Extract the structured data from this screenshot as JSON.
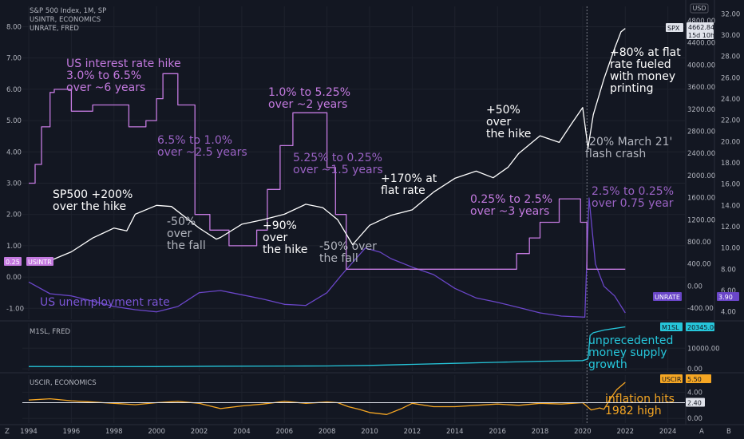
{
  "header": {
    "main_lines": [
      "S&P 500 Index, 1M, SP",
      "USINTR, ECONOMICS",
      "UNRATE, FRED"
    ],
    "pane2_title": "M1SL, FRED",
    "pane3_title": "USCIR, ECONOMICS",
    "currency": "USD"
  },
  "bottom_bar": {
    "left": "Z",
    "right": [
      "A",
      "B"
    ]
  },
  "chart_data": [
    {
      "type": "line",
      "pane": "main",
      "title": "S&P 500 Index, 1M, SP",
      "x_ticks": [
        1994,
        1996,
        1998,
        2000,
        2002,
        2004,
        2006,
        2008,
        2010,
        2012,
        2014,
        2016,
        2018,
        2020,
        2022,
        2024
      ],
      "xlim": [
        1993.7,
        2024.8
      ],
      "left_axis": {
        "ticks": [
          "-1.00",
          "0.00",
          "1.00",
          "2.00",
          "3.00",
          "4.00",
          "5.00",
          "6.00",
          "7.00",
          "8.00"
        ],
        "ylim": [
          -1.35,
          8.65
        ]
      },
      "mid_axis": {
        "ticks": [
          "-400.00",
          "0.00",
          "400.00",
          "800.00",
          "1200.00",
          "1600.00",
          "2000.00",
          "2400.00",
          "2800.00",
          "3200.00",
          "3600.00",
          "4000.00",
          "4400.00",
          "4800.00"
        ],
        "ylim": [
          -600,
          5060
        ]
      },
      "right_axis": {
        "ticks": [
          "4.00",
          "6.00",
          "8.00",
          "10.00",
          "12.00",
          "14.00",
          "16.00",
          "18.00",
          "20.00",
          "22.00",
          "24.00",
          "26.00",
          "28.00",
          "30.00",
          "32.00"
        ],
        "ylim": [
          3.3,
          32.7
        ]
      },
      "series": [
        {
          "name": "SPX",
          "axis": "mid",
          "color": "#ffffff",
          "last_value": "4662.84",
          "countdown": "15d 10h",
          "x": [
            1994,
            1995,
            1996,
            1997,
            1998,
            1998.6,
            1999,
            2000,
            2000.7,
            2001.5,
            2002,
            2002.8,
            2003,
            2004,
            2005,
            2006,
            2007,
            2007.8,
            2008.5,
            2009.2,
            2010,
            2011,
            2012,
            2013,
            2014,
            2015,
            2015.8,
            2016.5,
            2017,
            2018,
            2018.9,
            2019.5,
            2020,
            2020.25,
            2020.5,
            2021,
            2021.5,
            2021.8,
            2022
          ],
          "values": [
            470,
            460,
            620,
            870,
            1050,
            1000,
            1300,
            1460,
            1440,
            1200,
            1050,
            850,
            880,
            1120,
            1200,
            1300,
            1480,
            1420,
            1200,
            750,
            1100,
            1280,
            1380,
            1700,
            1950,
            2080,
            1960,
            2150,
            2400,
            2720,
            2600,
            2950,
            3230,
            2500,
            3100,
            3750,
            4300,
            4600,
            4662
          ]
        },
        {
          "name": "USINTR",
          "axis": "left",
          "color": "#c47ae0",
          "last_value": "0.25",
          "x": [
            1994,
            1994.3,
            1994.6,
            1995,
            1995.2,
            1996,
            1996.5,
            1997,
            1998.7,
            1999.5,
            2000,
            2000.3,
            2000.8,
            2001,
            2001.8,
            2002.5,
            2003.4,
            2004.3,
            2004.7,
            2005.2,
            2005.8,
            2006.4,
            2007.6,
            2008,
            2008.4,
            2008.9,
            2015.9,
            2016.9,
            2017.5,
            2018,
            2018.9,
            2019.5,
            2019.9,
            2020.2,
            2022
          ],
          "values": [
            3.0,
            3.6,
            4.8,
            5.9,
            6.0,
            5.3,
            5.3,
            5.5,
            4.8,
            5.0,
            5.7,
            6.5,
            6.5,
            5.5,
            2.0,
            1.5,
            1.0,
            1.0,
            1.5,
            2.8,
            4.2,
            5.25,
            5.25,
            3.5,
            2.0,
            0.25,
            0.25,
            0.75,
            1.25,
            1.75,
            2.5,
            2.5,
            1.75,
            0.25,
            0.25
          ]
        },
        {
          "name": "UNRATE",
          "axis": "right",
          "color": "#6a46c8",
          "last_value": "3.90",
          "x": [
            1994,
            1995,
            1996,
            1997,
            1998,
            1999,
            2000,
            2001,
            2002,
            2003,
            2004,
            2005,
            2006,
            2007,
            2008,
            2008.7,
            2009.8,
            2010.5,
            2011,
            2012,
            2013,
            2014,
            2015,
            2016,
            2017,
            2018,
            2019,
            2020.1,
            2020.3,
            2020.6,
            2021,
            2021.5,
            2022
          ],
          "values": [
            6.8,
            5.7,
            5.5,
            5.0,
            4.5,
            4.2,
            4.0,
            4.5,
            5.8,
            6.0,
            5.6,
            5.2,
            4.7,
            4.6,
            5.8,
            7.5,
            10.0,
            9.6,
            9.0,
            8.2,
            7.5,
            6.2,
            5.3,
            4.9,
            4.4,
            3.9,
            3.6,
            3.5,
            14.7,
            8.5,
            6.4,
            5.5,
            3.9
          ]
        }
      ]
    },
    {
      "type": "line",
      "pane": "m1",
      "title": "M1SL, FRED",
      "axis_ticks": [
        "0.00",
        "10000.00"
      ],
      "ylim": [
        -1100,
        22100
      ],
      "series": [
        {
          "name": "M1SL",
          "color": "#26c6da",
          "last_value": "20345.00",
          "x": [
            1994,
            1997,
            2000,
            2003,
            2006,
            2008,
            2010,
            2012,
            2014,
            2016,
            2018,
            2020,
            2020.25,
            2020.35,
            2020.5,
            2021,
            2022
          ],
          "values": [
            1130,
            1070,
            1100,
            1280,
            1370,
            1400,
            1700,
            2200,
            2700,
            3200,
            3700,
            4000,
            4800,
            16200,
            17500,
            18800,
            20345
          ]
        }
      ]
    },
    {
      "type": "line",
      "pane": "cpi",
      "title": "USCIR, ECONOMICS",
      "axis_ticks": [
        "0.00",
        "4.00"
      ],
      "ylim": [
        -0.7,
        6.6
      ],
      "series": [
        {
          "name": "USCIR",
          "color": "#f5a623",
          "last_value": "5.50",
          "reference_value": "2.40",
          "x": [
            1994,
            1995,
            1996,
            1997,
            1998,
            1999,
            2000,
            2001,
            2002,
            2003,
            2004,
            2005,
            2006,
            2007,
            2008,
            2008.5,
            2009,
            2009.5,
            2010,
            2010.8,
            2011.5,
            2012,
            2013,
            2014,
            2015,
            2016,
            2017,
            2018,
            2019,
            2020,
            2020.4,
            2020.8,
            2021,
            2021.3,
            2021.6,
            2022
          ],
          "values": [
            2.8,
            3.0,
            2.7,
            2.5,
            2.3,
            2.1,
            2.4,
            2.6,
            2.3,
            1.5,
            1.9,
            2.2,
            2.6,
            2.3,
            2.5,
            2.4,
            1.8,
            1.4,
            0.9,
            0.6,
            1.5,
            2.3,
            1.8,
            1.8,
            2.0,
            2.2,
            2.0,
            2.3,
            2.2,
            2.4,
            1.3,
            1.6,
            1.4,
            3.0,
            4.4,
            5.5
          ]
        }
      ]
    }
  ],
  "annotations": [
    {
      "id": "ann-rate-hike-1994",
      "lines": [
        "US interest rate hike",
        "3.0% to 6.5%",
        "over ~6 years"
      ],
      "color": "#c47ae0"
    },
    {
      "id": "ann-rate-cut-2001",
      "lines": [
        "6.5% to 1.0%",
        "over ~2.5 years"
      ],
      "color": "#9a62c4"
    },
    {
      "id": "ann-rate-hike-2004",
      "lines": [
        "1.0% to 5.25%",
        "over ~2 years"
      ],
      "color": "#c47ae0"
    },
    {
      "id": "ann-rate-cut-2007",
      "lines": [
        "5.25% to 0.25%",
        "over ~1.5 years"
      ],
      "color": "#9a62c4"
    },
    {
      "id": "ann-spx-hike-1994",
      "lines": [
        "SP500 +200%",
        "over the hike"
      ],
      "color": "#ffffff"
    },
    {
      "id": "ann-spx-fall-2001",
      "lines": [
        "-50%",
        "over",
        "the fall"
      ],
      "color": "#b2b5be"
    },
    {
      "id": "ann-spx-hike-2004",
      "lines": [
        "+90%",
        "over",
        "the hike"
      ],
      "color": "#ffffff"
    },
    {
      "id": "ann-spx-fall-2008",
      "lines": [
        "-50% over",
        "the fall"
      ],
      "color": "#b2b5be"
    },
    {
      "id": "ann-spx-flat-rate",
      "lines": [
        "+170% at",
        "flat rate"
      ],
      "color": "#ffffff"
    },
    {
      "id": "ann-spx-hike-2016",
      "lines": [
        "+50%",
        "over",
        "the hike"
      ],
      "color": "#ffffff"
    },
    {
      "id": "ann-rate-hike-2016",
      "lines": [
        "0.25% to 2.5%",
        "over ~3 years"
      ],
      "color": "#c47ae0"
    },
    {
      "id": "ann-rate-cut-2019",
      "lines": [
        "2.5% to 0.25%",
        "over 0.75 year"
      ],
      "color": "#9a62c4"
    },
    {
      "id": "ann-money-printing",
      "lines": [
        "+80% at flat",
        "rate fueled",
        "with money",
        "printing"
      ],
      "color": "#ffffff"
    },
    {
      "id": "ann-flash-crash",
      "lines": [
        "-20% March 21'",
        "flash crash"
      ],
      "color": "#b2b5be"
    },
    {
      "id": "ann-unemployment",
      "lines": [
        "US unemployment rate"
      ],
      "color": "#7b55d6"
    },
    {
      "id": "ann-money-supply",
      "lines": [
        "unprecedented",
        "money supply",
        "growth"
      ],
      "color": "#26c6da"
    },
    {
      "id": "ann-inflation",
      "lines": [
        "inflation hits",
        "1982 high"
      ],
      "color": "#f5a623"
    }
  ]
}
